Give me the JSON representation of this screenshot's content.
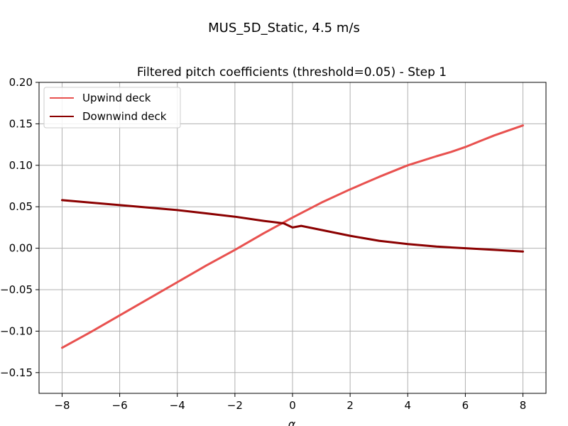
{
  "suptitle": "MUS_5D_Static, 4.5 m/s",
  "chart_data": {
    "type": "line",
    "title": "Filtered pitch coefficients (threshold=0.05) - Step 1",
    "xlabel": "α",
    "ylabel": "",
    "xlim": [
      -8.8,
      8.8
    ],
    "ylim": [
      -0.175,
      0.2
    ],
    "xticks": [
      -8,
      -6,
      -4,
      -2,
      0,
      2,
      4,
      6,
      8
    ],
    "xtick_labels": [
      "−8",
      "−6",
      "−4",
      "−2",
      "0",
      "2",
      "4",
      "6",
      "8"
    ],
    "yticks": [
      -0.15,
      -0.1,
      -0.05,
      0.0,
      0.05,
      0.1,
      0.15,
      0.2
    ],
    "ytick_labels": [
      "−0.15",
      "−0.10",
      "−0.05",
      "0.00",
      "0.05",
      "0.10",
      "0.15",
      "0.20"
    ],
    "grid": true,
    "legend_position": "top-left",
    "series": [
      {
        "name": "Upwind deck",
        "color": "#e8514f",
        "x": [
          -8,
          -7,
          -6,
          -5,
          -4,
          -3,
          -2,
          -1,
          0,
          1,
          2,
          3,
          4,
          5,
          5.5,
          6,
          6.5,
          7,
          7.5,
          8
        ],
        "y": [
          -0.12,
          -0.101,
          -0.081,
          -0.061,
          -0.041,
          -0.021,
          -0.002,
          0.018,
          0.037,
          0.055,
          0.071,
          0.086,
          0.1,
          0.111,
          0.116,
          0.122,
          0.129,
          0.136,
          0.142,
          0.148
        ]
      },
      {
        "name": "Downwind deck",
        "color": "#8b0000",
        "x": [
          -8,
          -7,
          -6,
          -5,
          -4,
          -3,
          -2,
          -1,
          -0.3,
          0,
          0.3,
          1,
          2,
          3,
          4,
          5,
          6,
          7,
          8
        ],
        "y": [
          0.058,
          0.055,
          0.052,
          0.049,
          0.046,
          0.042,
          0.038,
          0.033,
          0.03,
          0.025,
          0.027,
          0.022,
          0.015,
          0.009,
          0.005,
          0.002,
          0.0,
          -0.002,
          -0.004
        ]
      }
    ]
  }
}
